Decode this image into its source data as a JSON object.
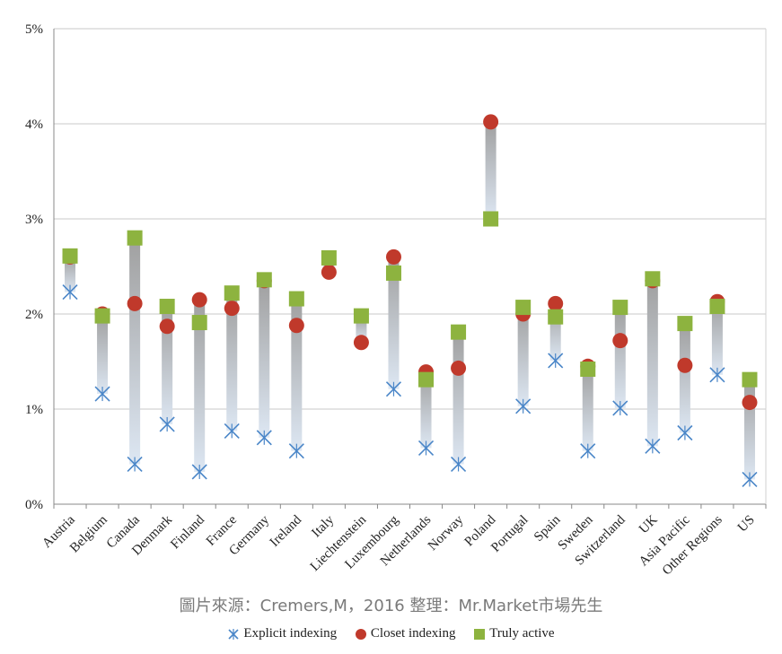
{
  "chart_data": {
    "type": "scatter",
    "title": "",
    "xlabel": "",
    "ylabel": "",
    "ylim": [
      0,
      5
    ],
    "y_ticks": [
      "0%",
      "1%",
      "2%",
      "3%",
      "4%",
      "5%"
    ],
    "grid": true,
    "legend_position": "bottom",
    "categories": [
      "Austria",
      "Belgium",
      "Canada",
      "Denmark",
      "Finland",
      "France",
      "Germany",
      "Ireland",
      "Italy",
      "Liechtenstein",
      "Luxembourg",
      "Netherlands",
      "Norway",
      "Poland",
      "Portugal",
      "Spain",
      "Sweden",
      "Switzerland",
      "UK",
      "Asia Pacific",
      "Other Regions",
      "US"
    ],
    "series": [
      {
        "name": "Explicit indexing",
        "marker": "x",
        "color": "#4a86c8",
        "values": [
          2.23,
          1.16,
          0.42,
          0.84,
          0.34,
          0.77,
          0.7,
          0.56,
          null,
          null,
          1.21,
          0.59,
          0.42,
          null,
          1.03,
          1.51,
          0.56,
          1.01,
          0.61,
          0.75,
          1.36,
          0.26
        ]
      },
      {
        "name": "Closet indexing",
        "marker": "circle",
        "color": "#c0392b",
        "values": [
          2.6,
          2.0,
          2.11,
          1.87,
          2.15,
          2.06,
          2.35,
          1.88,
          2.44,
          1.7,
          2.6,
          1.39,
          1.43,
          4.02,
          2.0,
          2.11,
          1.45,
          1.72,
          2.35,
          1.46,
          2.13,
          1.07
        ]
      },
      {
        "name": "Truly active",
        "marker": "square",
        "color": "#8db33f",
        "values": [
          2.61,
          1.98,
          2.8,
          2.08,
          1.91,
          2.22,
          2.36,
          2.16,
          2.59,
          1.98,
          2.43,
          1.31,
          1.81,
          3.0,
          2.07,
          1.97,
          1.42,
          2.07,
          2.37,
          1.9,
          2.08,
          1.31
        ]
      }
    ]
  },
  "source_text": "圖片來源：Cremers,M，2016  整理：Mr.Market市場先生",
  "legend": {
    "explicit": "Explicit indexing",
    "closet": "Closet indexing",
    "active": "Truly active"
  },
  "colors": {
    "grid": "#c8c8c8",
    "range_bar_top": "#a0a0a0",
    "range_bar_bottom": "#d9e5f2"
  }
}
